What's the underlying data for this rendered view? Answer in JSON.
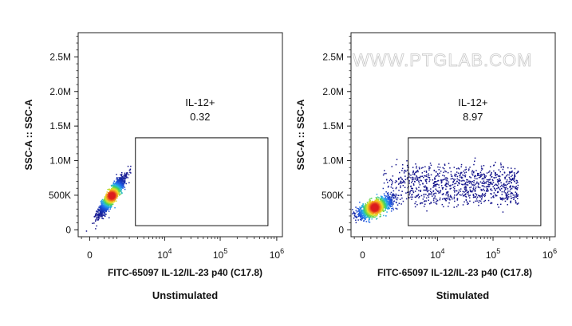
{
  "watermark": "WWW.PTGLAB.COM",
  "chart_data": [
    {
      "type": "scatter",
      "title": "",
      "caption": "Unstimulated",
      "xlabel": "FITC-65097 IL-12/IL-23 p40 (C17.8)",
      "ylabel": "SSC-A :: SSC-A",
      "x_scale": "biexponential",
      "x_ticks": [
        {
          "value": 0,
          "base": "0",
          "exp": ""
        },
        {
          "value": 10000,
          "base": "10",
          "exp": "4"
        },
        {
          "value": 100000,
          "base": "10",
          "exp": "5"
        },
        {
          "value": 1000000,
          "base": "10",
          "exp": "6"
        }
      ],
      "y_ticks": [
        {
          "value": 0,
          "label": "0"
        },
        {
          "value": 500000,
          "label": "500K"
        },
        {
          "value": 1000000,
          "label": "1.0M"
        },
        {
          "value": 1500000,
          "label": "1.5M"
        },
        {
          "value": 2000000,
          "label": "2.0M"
        },
        {
          "value": 2500000,
          "label": "2.5M"
        }
      ],
      "ylim": [
        -100000,
        2850000
      ],
      "gate": {
        "name": "IL-12+",
        "percent": "0.32",
        "x_range": [
          2700,
          700000
        ],
        "y_range": [
          60000,
          1330000
        ]
      },
      "population": {
        "center_x": 700,
        "center_y": 500000,
        "approx_events": 1800
      }
    },
    {
      "type": "scatter",
      "title": "",
      "caption": "Stimulated",
      "xlabel": "FITC-65097 IL-12/IL-23 p40 (C17.8)",
      "ylabel": "SSC-A :: SSC-A",
      "x_scale": "biexponential",
      "x_ticks": [
        {
          "value": 0,
          "base": "0",
          "exp": ""
        },
        {
          "value": 10000,
          "base": "10",
          "exp": "4"
        },
        {
          "value": 100000,
          "base": "10",
          "exp": "5"
        },
        {
          "value": 1000000,
          "base": "10",
          "exp": "6"
        }
      ],
      "y_ticks": [
        {
          "value": 0,
          "label": "0"
        },
        {
          "value": 500000,
          "label": "500K"
        },
        {
          "value": 1000000,
          "label": "1.0M"
        },
        {
          "value": 1500000,
          "label": "1.5M"
        },
        {
          "value": 2000000,
          "label": "2.0M"
        },
        {
          "value": 2500000,
          "label": "2.5M"
        }
      ],
      "ylim": [
        -100000,
        2850000
      ],
      "gate": {
        "name": "IL-12+",
        "percent": "8.97",
        "x_range": [
          2700,
          700000
        ],
        "y_range": [
          60000,
          1330000
        ]
      },
      "population": {
        "center_x": 300,
        "center_y": 330000,
        "approx_events": 2600
      }
    }
  ]
}
